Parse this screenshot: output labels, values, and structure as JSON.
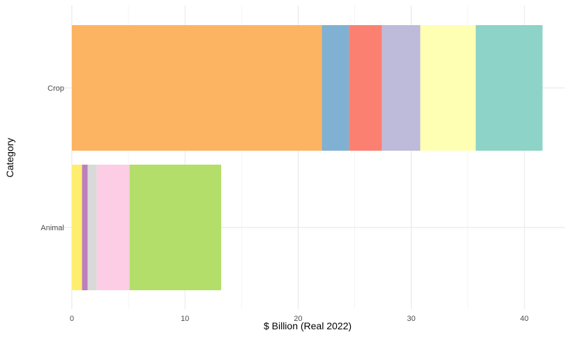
{
  "chart_data": {
    "type": "bar",
    "orientation": "horizontal",
    "stacked": true,
    "xlabel": "$ Billion (Real 2022)",
    "ylabel": "Category",
    "xlim": [
      0,
      43
    ],
    "x_ticks": [
      0,
      10,
      20,
      30,
      40
    ],
    "x_tick_labels": [
      "0",
      "10",
      "20",
      "30",
      "40"
    ],
    "categories": [
      "Crop",
      "Animal"
    ],
    "legend": "none",
    "grid": true,
    "stacks": [
      {
        "category": "Crop",
        "segments": [
          {
            "value": 22.1,
            "color": "#FDB462"
          },
          {
            "value": 2.4,
            "color": "#80B1D3"
          },
          {
            "value": 2.9,
            "color": "#FB8072"
          },
          {
            "value": 3.4,
            "color": "#BEBADA"
          },
          {
            "value": 4.9,
            "color": "#FFFFB3"
          },
          {
            "value": 5.9,
            "color": "#8DD3C7"
          }
        ]
      },
      {
        "category": "Animal",
        "segments": [
          {
            "value": 0.9,
            "color": "#FFED6F"
          },
          {
            "value": 0.5,
            "color": "#BC80BD"
          },
          {
            "value": 0.8,
            "color": "#D9D9D9"
          },
          {
            "value": 2.9,
            "color": "#FCCDE5"
          },
          {
            "value": 8.1,
            "color": "#B3DE69"
          }
        ]
      }
    ]
  }
}
